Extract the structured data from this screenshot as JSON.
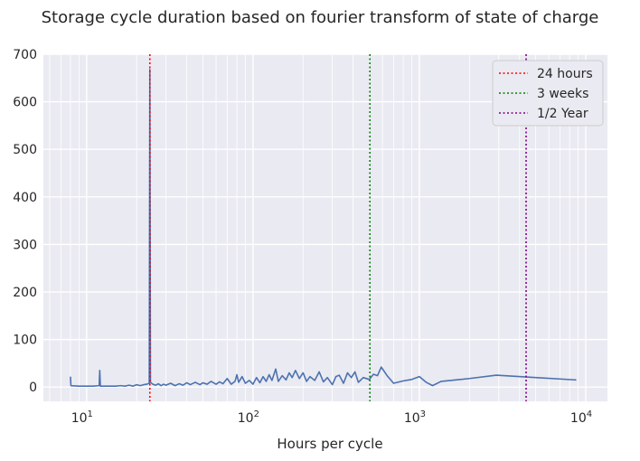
{
  "chart_data": {
    "type": "line",
    "title": "Storage cycle duration based on fourier transform of state of charge",
    "xlabel": "Hours per cycle",
    "ylabel": "",
    "xscale": "log",
    "xlim": [
      5.5,
      13500
    ],
    "ylim": [
      -30,
      700
    ],
    "x_ticks": [
      10,
      100,
      1000,
      10000
    ],
    "x_tick_labels": [
      {
        "base": "10",
        "exp": "1"
      },
      {
        "base": "10",
        "exp": "2"
      },
      {
        "base": "10",
        "exp": "3"
      },
      {
        "base": "10",
        "exp": "4"
      }
    ],
    "y_ticks": [
      0,
      100,
      200,
      300,
      400,
      500,
      600,
      700
    ],
    "grid": true,
    "background": "#eaeaf2",
    "series": [
      {
        "color": "#4c72b0",
        "points": [
          [
            8,
            22
          ],
          [
            8.05,
            3
          ],
          [
            9,
            2
          ],
          [
            10,
            2
          ],
          [
            11,
            2
          ],
          [
            11.9,
            3
          ],
          [
            12,
            35
          ],
          [
            12.1,
            2
          ],
          [
            13,
            2
          ],
          [
            14,
            2
          ],
          [
            15,
            2
          ],
          [
            16,
            3
          ],
          [
            17,
            2
          ],
          [
            18,
            4
          ],
          [
            19,
            2
          ],
          [
            20,
            5
          ],
          [
            21,
            3
          ],
          [
            22,
            5
          ],
          [
            23,
            6
          ],
          [
            23.8,
            8
          ],
          [
            24,
            668
          ],
          [
            24.2,
            10
          ],
          [
            25,
            6
          ],
          [
            26,
            4
          ],
          [
            27,
            7
          ],
          [
            28,
            3
          ],
          [
            29,
            6
          ],
          [
            30,
            4
          ],
          [
            32,
            8
          ],
          [
            34,
            3
          ],
          [
            36,
            7
          ],
          [
            38,
            4
          ],
          [
            40,
            9
          ],
          [
            42,
            5
          ],
          [
            45,
            10
          ],
          [
            48,
            5
          ],
          [
            50,
            9
          ],
          [
            53,
            6
          ],
          [
            56,
            12
          ],
          [
            60,
            6
          ],
          [
            63,
            11
          ],
          [
            66,
            7
          ],
          [
            70,
            18
          ],
          [
            74,
            6
          ],
          [
            78,
            12
          ],
          [
            80,
            26
          ],
          [
            82,
            10
          ],
          [
            86,
            22
          ],
          [
            90,
            8
          ],
          [
            95,
            14
          ],
          [
            100,
            6
          ],
          [
            105,
            20
          ],
          [
            110,
            9
          ],
          [
            115,
            22
          ],
          [
            120,
            12
          ],
          [
            125,
            26
          ],
          [
            130,
            14
          ],
          [
            137,
            38
          ],
          [
            142,
            12
          ],
          [
            150,
            24
          ],
          [
            158,
            15
          ],
          [
            165,
            30
          ],
          [
            172,
            20
          ],
          [
            180,
            35
          ],
          [
            190,
            18
          ],
          [
            200,
            30
          ],
          [
            210,
            12
          ],
          [
            220,
            22
          ],
          [
            235,
            14
          ],
          [
            250,
            32
          ],
          [
            265,
            11
          ],
          [
            280,
            20
          ],
          [
            300,
            5
          ],
          [
            315,
            22
          ],
          [
            330,
            25
          ],
          [
            350,
            8
          ],
          [
            370,
            30
          ],
          [
            390,
            20
          ],
          [
            410,
            32
          ],
          [
            430,
            10
          ],
          [
            460,
            20
          ],
          [
            500,
            16
          ],
          [
            530,
            27
          ],
          [
            560,
            24
          ],
          [
            590,
            42
          ],
          [
            640,
            24
          ],
          [
            700,
            8
          ],
          [
            800,
            13
          ],
          [
            900,
            16
          ],
          [
            1000,
            22
          ],
          [
            1100,
            10
          ],
          [
            1200,
            3
          ],
          [
            1350,
            12
          ],
          [
            2000,
            18
          ],
          [
            2900,
            25
          ],
          [
            5000,
            20
          ],
          [
            8760,
            15
          ]
        ]
      }
    ],
    "vlines": [
      {
        "x": 24,
        "color": "#ff0000",
        "label": "24 hours"
      },
      {
        "x": 504,
        "color": "#008000",
        "label": "3 weeks"
      },
      {
        "x": 4380,
        "color": "#800080",
        "label": "1/2 Year"
      }
    ],
    "legend": {
      "placement": "top-right"
    }
  }
}
